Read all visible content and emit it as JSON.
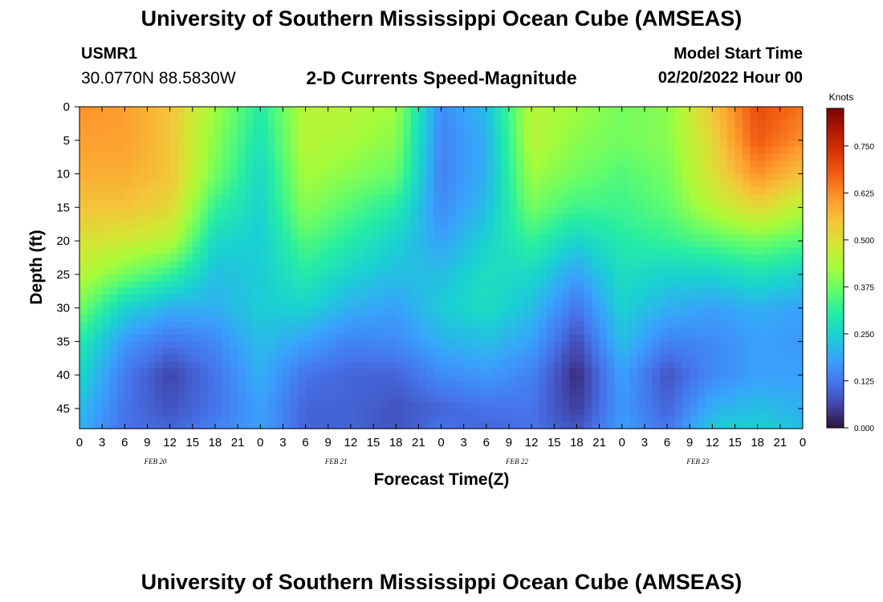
{
  "header": {
    "title": "University of Southern Mississippi Ocean Cube (AMSEAS)",
    "station": "USMR1",
    "coords": "30.0770N  88.5830W",
    "subtitle": "2-D Currents Speed-Magnitude",
    "start_label": "Model Start Time",
    "start_value": "02/20/2022 Hour 00"
  },
  "footer": {
    "title": "University of Southern Mississippi Ocean Cube (AMSEAS)"
  },
  "chart_data": {
    "type": "heatmap",
    "title": "2-D Currents Speed-Magnitude",
    "xlabel": "Forecast Time(Z)",
    "ylabel": "Depth (ft)",
    "colorbar_label": "Knots",
    "x_hours": [
      0,
      6,
      12,
      18,
      24,
      30,
      36,
      42,
      48,
      54,
      60,
      66,
      72,
      78,
      84,
      90,
      96
    ],
    "depths_ft": [
      0,
      5,
      10,
      15,
      20,
      25,
      30,
      35,
      40,
      45,
      48
    ],
    "speed_knots": [
      [
        0.62,
        0.6,
        0.58,
        0.55,
        0.5,
        0.45,
        0.38,
        0.3,
        0.26,
        0.22,
        0.2
      ],
      [
        0.6,
        0.6,
        0.58,
        0.55,
        0.48,
        0.38,
        0.25,
        0.17,
        0.13,
        0.12,
        0.12
      ],
      [
        0.55,
        0.55,
        0.55,
        0.52,
        0.45,
        0.32,
        0.2,
        0.12,
        0.06,
        0.08,
        0.1
      ],
      [
        0.42,
        0.4,
        0.38,
        0.32,
        0.26,
        0.22,
        0.2,
        0.15,
        0.12,
        0.12,
        0.14
      ],
      [
        0.3,
        0.28,
        0.26,
        0.25,
        0.24,
        0.24,
        0.24,
        0.22,
        0.2,
        0.18,
        0.18
      ],
      [
        0.45,
        0.45,
        0.43,
        0.4,
        0.35,
        0.3,
        0.25,
        0.18,
        0.12,
        0.1,
        0.1
      ],
      [
        0.45,
        0.43,
        0.4,
        0.35,
        0.3,
        0.25,
        0.2,
        0.14,
        0.1,
        0.1,
        0.1
      ],
      [
        0.42,
        0.4,
        0.37,
        0.3,
        0.25,
        0.22,
        0.18,
        0.15,
        0.1,
        0.08,
        0.08
      ],
      [
        0.15,
        0.14,
        0.14,
        0.15,
        0.18,
        0.22,
        0.24,
        0.2,
        0.15,
        0.1,
        0.12
      ],
      [
        0.22,
        0.2,
        0.2,
        0.22,
        0.25,
        0.27,
        0.27,
        0.22,
        0.17,
        0.12,
        0.1
      ],
      [
        0.45,
        0.45,
        0.42,
        0.38,
        0.32,
        0.26,
        0.22,
        0.18,
        0.14,
        0.12,
        0.12
      ],
      [
        0.42,
        0.4,
        0.38,
        0.33,
        0.25,
        0.18,
        0.12,
        0.07,
        0.03,
        0.05,
        0.08
      ],
      [
        0.38,
        0.38,
        0.35,
        0.33,
        0.3,
        0.27,
        0.25,
        0.22,
        0.18,
        0.17,
        0.18
      ],
      [
        0.4,
        0.4,
        0.38,
        0.36,
        0.32,
        0.25,
        0.2,
        0.14,
        0.08,
        0.1,
        0.12
      ],
      [
        0.55,
        0.52,
        0.5,
        0.45,
        0.35,
        0.25,
        0.18,
        0.15,
        0.15,
        0.2,
        0.24
      ],
      [
        0.7,
        0.68,
        0.62,
        0.52,
        0.38,
        0.28,
        0.2,
        0.18,
        0.18,
        0.22,
        0.25
      ],
      [
        0.65,
        0.62,
        0.55,
        0.45,
        0.35,
        0.25,
        0.18,
        0.17,
        0.18,
        0.2,
        0.22
      ]
    ],
    "x_tick_labels": [
      "0",
      "3",
      "6",
      "9",
      "12",
      "15",
      "18",
      "21",
      "0",
      "3",
      "6",
      "9",
      "12",
      "15",
      "18",
      "21",
      "0",
      "3",
      "6",
      "9",
      "12",
      "15",
      "18",
      "21",
      "0",
      "3",
      "6",
      "9",
      "12",
      "15",
      "18",
      "21",
      "0"
    ],
    "date_labels": [
      "FEB 20",
      "FEB 21",
      "FEB 22",
      "FEB 23"
    ],
    "y_tick_labels": [
      "0",
      "5",
      "10",
      "15",
      "20",
      "25",
      "30",
      "35",
      "40",
      "45"
    ],
    "y_ticks": [
      0,
      5,
      10,
      15,
      20,
      25,
      30,
      35,
      40,
      45
    ],
    "ylim": [
      0,
      48
    ],
    "xlim": [
      0,
      96
    ],
    "colorbar_ticks": [
      "0.000",
      "0.125",
      "0.250",
      "0.375",
      "0.500",
      "0.625",
      "0.750"
    ],
    "colorbar_range": [
      0,
      0.85
    ],
    "colormap": [
      "#30123b",
      "#4145ab",
      "#4675ed",
      "#39a2fc",
      "#1bcfd4",
      "#24eca6",
      "#61fc6c",
      "#a4fc3b",
      "#d1e834",
      "#f3c63a",
      "#fe9b2d",
      "#f36315",
      "#d93806",
      "#b11901",
      "#7a0402"
    ]
  }
}
